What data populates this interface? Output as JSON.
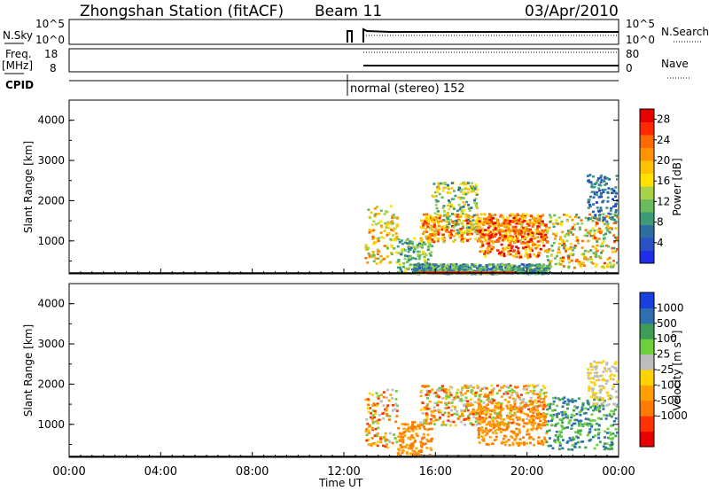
{
  "header": {
    "station": "Zhongshan Station (fitACF)",
    "beam": "Beam 11",
    "date": "03/Apr/2010"
  },
  "panels": {
    "nsky_label": "N.Sky",
    "nsky_ticks": [
      "10^5",
      "10^0"
    ],
    "nsearch_label": "N.Search",
    "nsearch_ticks": [
      "10^5",
      "10^0"
    ],
    "freq_label": "Freq.",
    "freq_unit": "[MHz]",
    "freq_ticks": [
      "18",
      "8"
    ],
    "nave_label": "Nave",
    "nave_ticks": [
      "80",
      "0"
    ],
    "cpid_label": "CPID",
    "cpid_text": "normal (stereo) 152"
  },
  "colors": {
    "power": [
      "#1f2fe8",
      "#2a52c4",
      "#2d6fa0",
      "#3f9b77",
      "#6aba5e",
      "#a8d14a",
      "#ffe000",
      "#ffc000",
      "#ff9400",
      "#ff6a00",
      "#ff2a00",
      "#e60000"
    ],
    "velocity": [
      "#e60000",
      "#ff3300",
      "#ff7a00",
      "#ffa000",
      "#ffd200",
      "#bdbdbd",
      "#6ccf3c",
      "#3e9c57",
      "#2e6fb0",
      "#1a3fe0"
    ]
  },
  "chart_data": [
    {
      "type": "heatmap",
      "name": "power",
      "ylabel": "Slant Range [km]",
      "yticks": [
        "1000",
        "2000",
        "3000",
        "4000"
      ],
      "ylim": [
        180,
        4500
      ],
      "xlim": [
        0,
        24
      ],
      "colorbar_label": "Power [dB]",
      "colorbar_ticks": [
        "4",
        "8",
        "12",
        "16",
        "20",
        "24",
        "28"
      ],
      "scatter_regions": [
        {
          "t": [
            12.9,
            14.3
          ],
          "r": [
            450,
            1900
          ],
          "v": [
            10,
            24
          ]
        },
        {
          "t": [
            14.3,
            15.8
          ],
          "r": [
            250,
            1100
          ],
          "v": [
            6,
            16
          ]
        },
        {
          "t": [
            15.3,
            20.8
          ],
          "r": [
            1000,
            1700
          ],
          "v": [
            14,
            28
          ]
        },
        {
          "t": [
            15.8,
            17.8
          ],
          "r": [
            1200,
            2500
          ],
          "v": [
            6,
            20
          ]
        },
        {
          "t": [
            17.8,
            20.8
          ],
          "r": [
            600,
            1600
          ],
          "v": [
            16,
            30
          ]
        },
        {
          "t": [
            20.8,
            23.9
          ],
          "r": [
            350,
            1700
          ],
          "v": [
            8,
            26
          ]
        },
        {
          "t": [
            22.6,
            23.9
          ],
          "r": [
            1500,
            2700
          ],
          "v": [
            2,
            10
          ]
        },
        {
          "t": [
            15.0,
            21.0
          ],
          "r": [
            200,
            450
          ],
          "v": [
            4,
            14
          ]
        }
      ]
    },
    {
      "type": "heatmap",
      "name": "velocity",
      "ylabel": "Slant Range [km]",
      "yticks": [
        "1000",
        "2000",
        "3000",
        "4000"
      ],
      "ylim": [
        180,
        4500
      ],
      "xlim": [
        0,
        24
      ],
      "xlabel": "Time UT",
      "xticks": [
        "00:00",
        "04:00",
        "08:00",
        "12:00",
        "16:00",
        "20:00",
        "00:00"
      ],
      "colorbar_label": "Velocity [m s-1]",
      "colorbar_ticks": [
        "1000",
        "500",
        "100",
        "25",
        "-25",
        "-100",
        "-500",
        "-1000"
      ],
      "scatter_regions": [
        {
          "t": [
            12.9,
            14.3
          ],
          "r": [
            450,
            1900
          ],
          "v": [
            1,
            7
          ]
        },
        {
          "t": [
            14.3,
            15.8
          ],
          "r": [
            250,
            1100
          ],
          "v": [
            2,
            4
          ]
        },
        {
          "t": [
            15.3,
            20.8
          ],
          "r": [
            1000,
            2000
          ],
          "v": [
            1,
            7
          ]
        },
        {
          "t": [
            17.8,
            20.8
          ],
          "r": [
            500,
            1600
          ],
          "v": [
            2,
            4
          ]
        },
        {
          "t": [
            20.8,
            23.9
          ],
          "r": [
            400,
            1700
          ],
          "v": [
            6,
            9
          ]
        },
        {
          "t": [
            22.6,
            23.9
          ],
          "r": [
            1500,
            2600
          ],
          "v": [
            4,
            6
          ]
        }
      ]
    }
  ]
}
